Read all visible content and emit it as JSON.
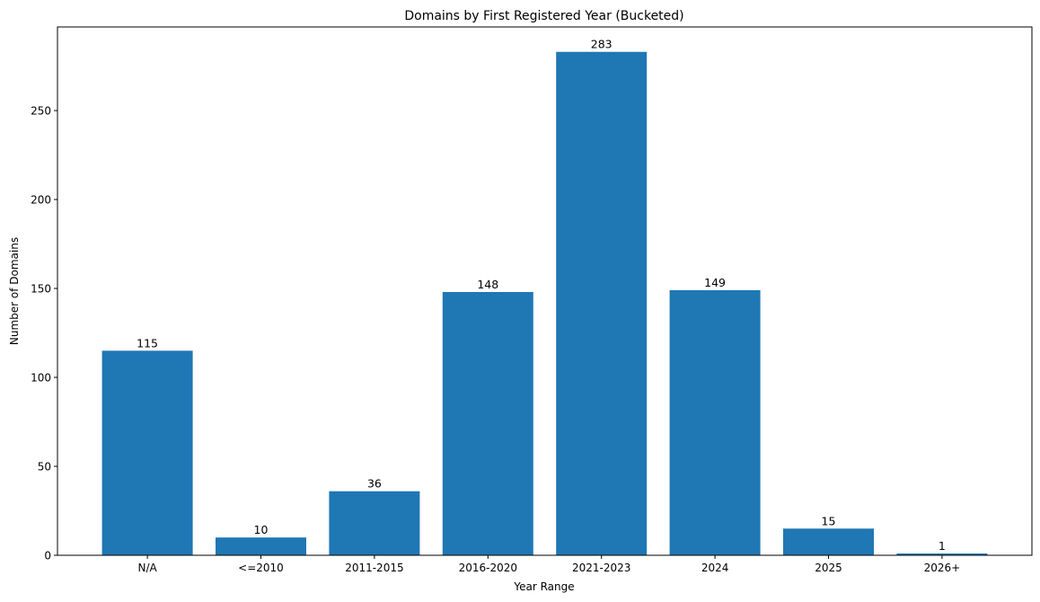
{
  "chart_data": {
    "type": "bar",
    "title": "Domains by First Registered Year (Bucketed)",
    "xlabel": "Year Range",
    "ylabel": "Number of Domains",
    "categories": [
      "N/A",
      "<=2010",
      "2011-2015",
      "2016-2020",
      "2021-2023",
      "2024",
      "2025",
      "2026+"
    ],
    "values": [
      115,
      10,
      36,
      148,
      283,
      149,
      15,
      1
    ],
    "ylim": [
      0,
      297
    ],
    "yticks": [
      0,
      50,
      100,
      150,
      200,
      250
    ],
    "grid": false,
    "legend": "none",
    "bar_color": "#1f77b4"
  }
}
